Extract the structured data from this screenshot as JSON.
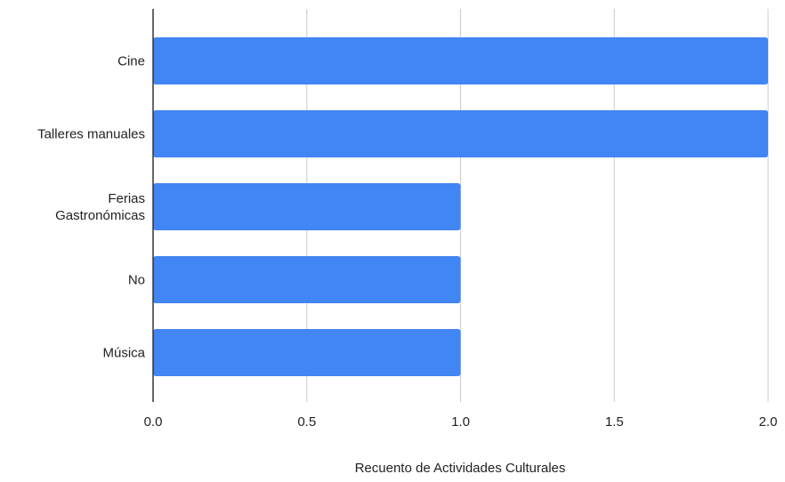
{
  "chart_data": {
    "type": "bar",
    "orientation": "horizontal",
    "categories": [
      "Cine",
      "Talleres manuales",
      "Ferias Gastronómicas",
      "No",
      "Música"
    ],
    "category_lines": [
      [
        "Cine"
      ],
      [
        "Talleres manuales"
      ],
      [
        "Ferias",
        "Gastronómicas"
      ],
      [
        "No"
      ],
      [
        "Música"
      ]
    ],
    "values": [
      2,
      2,
      1,
      1,
      1
    ],
    "title": "",
    "xlabel": "Recuento de Actividades Culturales",
    "ylabel": "",
    "xlim": [
      0,
      2
    ],
    "xticks": [
      "0.0",
      "0.5",
      "1.0",
      "1.5",
      "2.0"
    ],
    "grid": true,
    "legend": "none"
  },
  "colors": {
    "bar": "#4285f4",
    "grid": "#cccccc",
    "axis": "#333333",
    "text": "#222222"
  }
}
